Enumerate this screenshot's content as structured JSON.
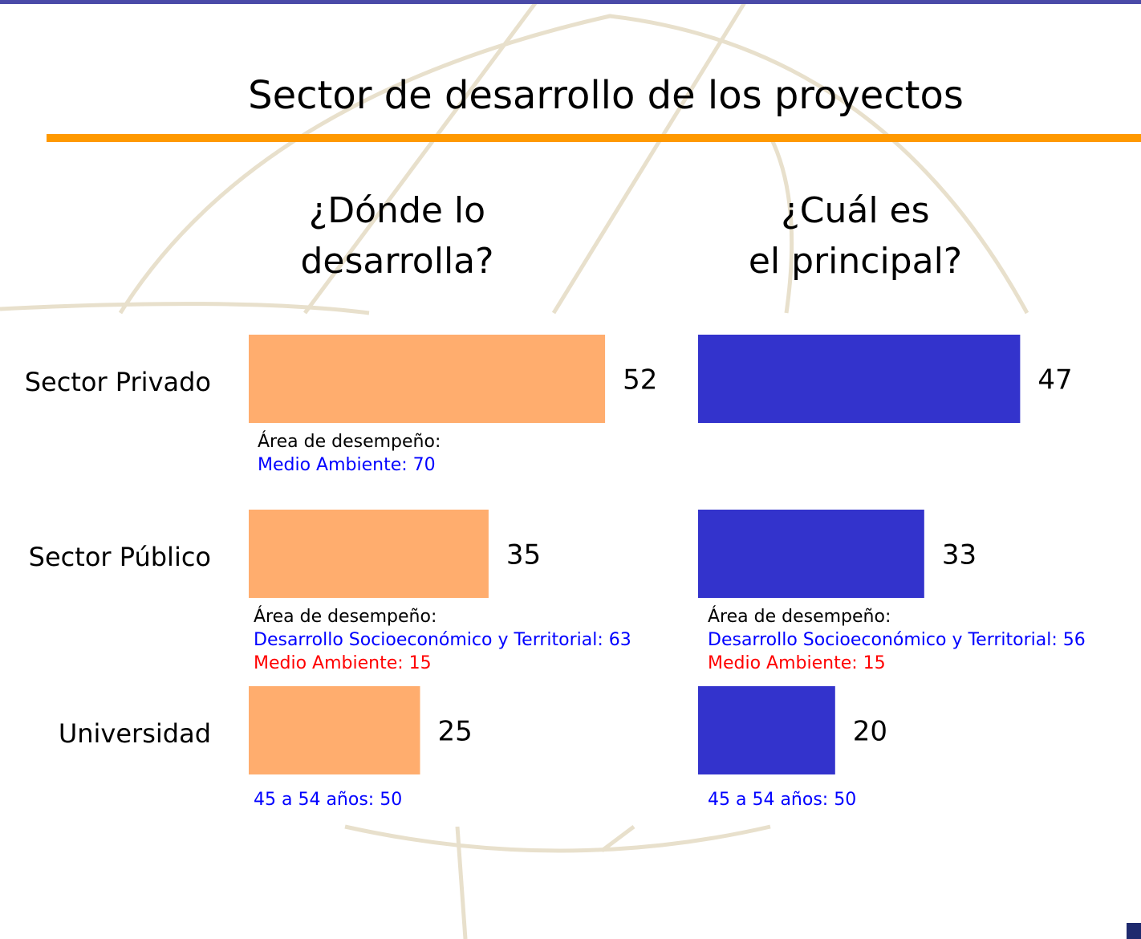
{
  "chart_data": {
    "type": "bar",
    "orientation": "horizontal",
    "title": "Sector de desarrollo de los proyectos",
    "categories": [
      "Sector Privado",
      "Sector Público",
      "Universidad"
    ],
    "series": [
      {
        "name": "¿Dónde lo\ndesarrolla?",
        "color": "#ffad6e",
        "values": [
          52,
          35,
          25
        ],
        "notes": [
          [
            {
              "text": "Área de desempeño:",
              "color": "#000000"
            },
            {
              "text": "Medio Ambiente: 70",
              "color": "#0000ff"
            }
          ],
          [
            {
              "text": "Área de desempeño:",
              "color": "#000000"
            },
            {
              "text": "Desarrollo Socioeconómico y Territorial: 63",
              "color": "#0000ff"
            },
            {
              "text": "Medio Ambiente: 15",
              "color": "#ff0000"
            }
          ],
          [
            {
              "text": "45 a 54 años: 50",
              "color": "#0000ff"
            }
          ]
        ]
      },
      {
        "name": "¿Cuál es\nel principal?",
        "color": "#3333cc",
        "values": [
          47,
          33,
          20
        ],
        "notes": [
          [],
          [
            {
              "text": "Área de desempeño:",
              "color": "#000000"
            },
            {
              "text": "Desarrollo Socioeconómico y Territorial: 56",
              "color": "#0000ff"
            },
            {
              "text": "Medio Ambiente: 15",
              "color": "#ff0000"
            }
          ],
          [
            {
              "text": "45 a 54 años: 50",
              "color": "#0000ff"
            }
          ]
        ]
      }
    ]
  }
}
